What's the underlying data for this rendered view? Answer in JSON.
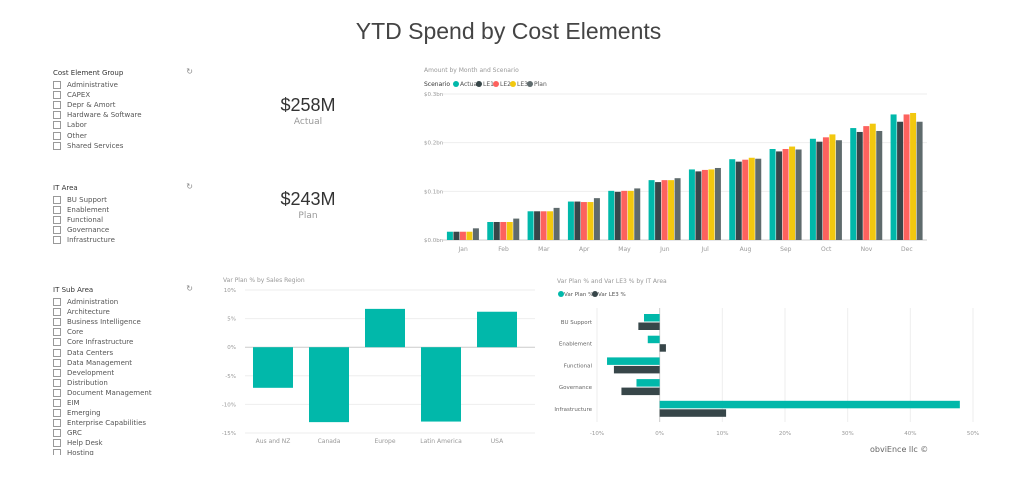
{
  "title": "YTD Spend by Cost Elements",
  "slicers": {
    "cost_element_group": {
      "header": "Cost Element Group",
      "items": [
        "Administrative",
        "CAPEX",
        "Depr & Amort",
        "Hardware & Software",
        "Labor",
        "Other",
        "Shared Services"
      ]
    },
    "it_area": {
      "header": "IT Area",
      "items": [
        "BU Support",
        "Enablement",
        "Functional",
        "Governance",
        "Infrastructure"
      ]
    },
    "it_sub_area": {
      "header": "IT Sub Area",
      "items": [
        "Administration",
        "Architecture",
        "Business Intelligence",
        "Core",
        "Core Infrastructure",
        "Data Centers",
        "Data Management",
        "Development",
        "Distribution",
        "Document Management",
        "EIM",
        "Emerging",
        "Enterprise Capabilities",
        "GRC",
        "Help Desk",
        "Hosting"
      ]
    }
  },
  "kpis": {
    "actual": {
      "value": "$258M",
      "label": "Actual"
    },
    "plan": {
      "value": "$243M",
      "label": "Plan"
    }
  },
  "watermark": "obviEnce llc ©",
  "chart_data": [
    {
      "type": "bar",
      "title": "Amount by Month and Scenario",
      "legend_title": "Scenario",
      "legend_position": "top-left",
      "grid": true,
      "categories": [
        "Jan",
        "Feb",
        "Mar",
        "Apr",
        "May",
        "Jun",
        "Jul",
        "Aug",
        "Sep",
        "Oct",
        "Nov",
        "Dec"
      ],
      "ylim": [
        0,
        0.3
      ],
      "yticks": [
        0,
        0.1,
        0.2,
        0.3
      ],
      "ytick_labels": [
        "$0.0bn",
        "$0.1bn",
        "$0.2bn",
        "$0.3bn"
      ],
      "series": [
        {
          "name": "Actual",
          "color": "#01B8AA",
          "values": [
            0.017,
            0.037,
            0.059,
            0.079,
            0.101,
            0.123,
            0.145,
            0.166,
            0.187,
            0.208,
            0.23,
            0.258
          ]
        },
        {
          "name": "LE1",
          "color": "#374649",
          "values": [
            0.017,
            0.037,
            0.059,
            0.079,
            0.099,
            0.119,
            0.141,
            0.161,
            0.182,
            0.202,
            0.222,
            0.243
          ]
        },
        {
          "name": "LE2",
          "color": "#FD625E",
          "values": [
            0.017,
            0.037,
            0.059,
            0.078,
            0.101,
            0.123,
            0.144,
            0.165,
            0.187,
            0.211,
            0.234,
            0.258
          ]
        },
        {
          "name": "LE3",
          "color": "#F2C80F",
          "values": [
            0.017,
            0.037,
            0.059,
            0.078,
            0.101,
            0.123,
            0.145,
            0.169,
            0.192,
            0.217,
            0.239,
            0.261
          ]
        },
        {
          "name": "Plan",
          "color": "#5F6B6D",
          "values": [
            0.024,
            0.044,
            0.066,
            0.086,
            0.106,
            0.127,
            0.148,
            0.167,
            0.186,
            0.205,
            0.224,
            0.243
          ]
        }
      ]
    },
    {
      "type": "bar",
      "title": "Var Plan % by Sales Region",
      "grid": true,
      "categories": [
        "Aus and NZ",
        "Canada",
        "Europe",
        "Latin America",
        "USA"
      ],
      "ylim": [
        -15,
        10
      ],
      "yticks": [
        -15,
        -10,
        -5,
        0,
        5,
        10
      ],
      "ytick_labels": [
        "-15%",
        "-10%",
        "-5%",
        "0%",
        "5%",
        "10%"
      ],
      "series": [
        {
          "color": "#01B8AA",
          "values": [
            -7.1,
            -13.1,
            6.7,
            -13.0,
            6.2
          ]
        }
      ]
    },
    {
      "type": "bar",
      "orientation": "horizontal",
      "title": "Var Plan % and Var LE3 % by IT Area",
      "legend_position": "top-left",
      "grid": true,
      "categories": [
        "BU Support",
        "Enablement",
        "Functional",
        "Governance",
        "Infrastructure"
      ],
      "xlim": [
        -10,
        50
      ],
      "xticks": [
        -10,
        0,
        10,
        20,
        30,
        40,
        50
      ],
      "xtick_labels": [
        "-10%",
        "0%",
        "10%",
        "20%",
        "30%",
        "40%",
        "50%"
      ],
      "series": [
        {
          "name": "Var Plan %",
          "color": "#01B8AA",
          "values": [
            -2.5,
            -1.9,
            -8.4,
            -3.7,
            47.9
          ]
        },
        {
          "name": "Var LE3 %",
          "color": "#374649",
          "values": [
            -3.4,
            1.0,
            -7.3,
            -6.1,
            10.6
          ]
        }
      ]
    }
  ]
}
